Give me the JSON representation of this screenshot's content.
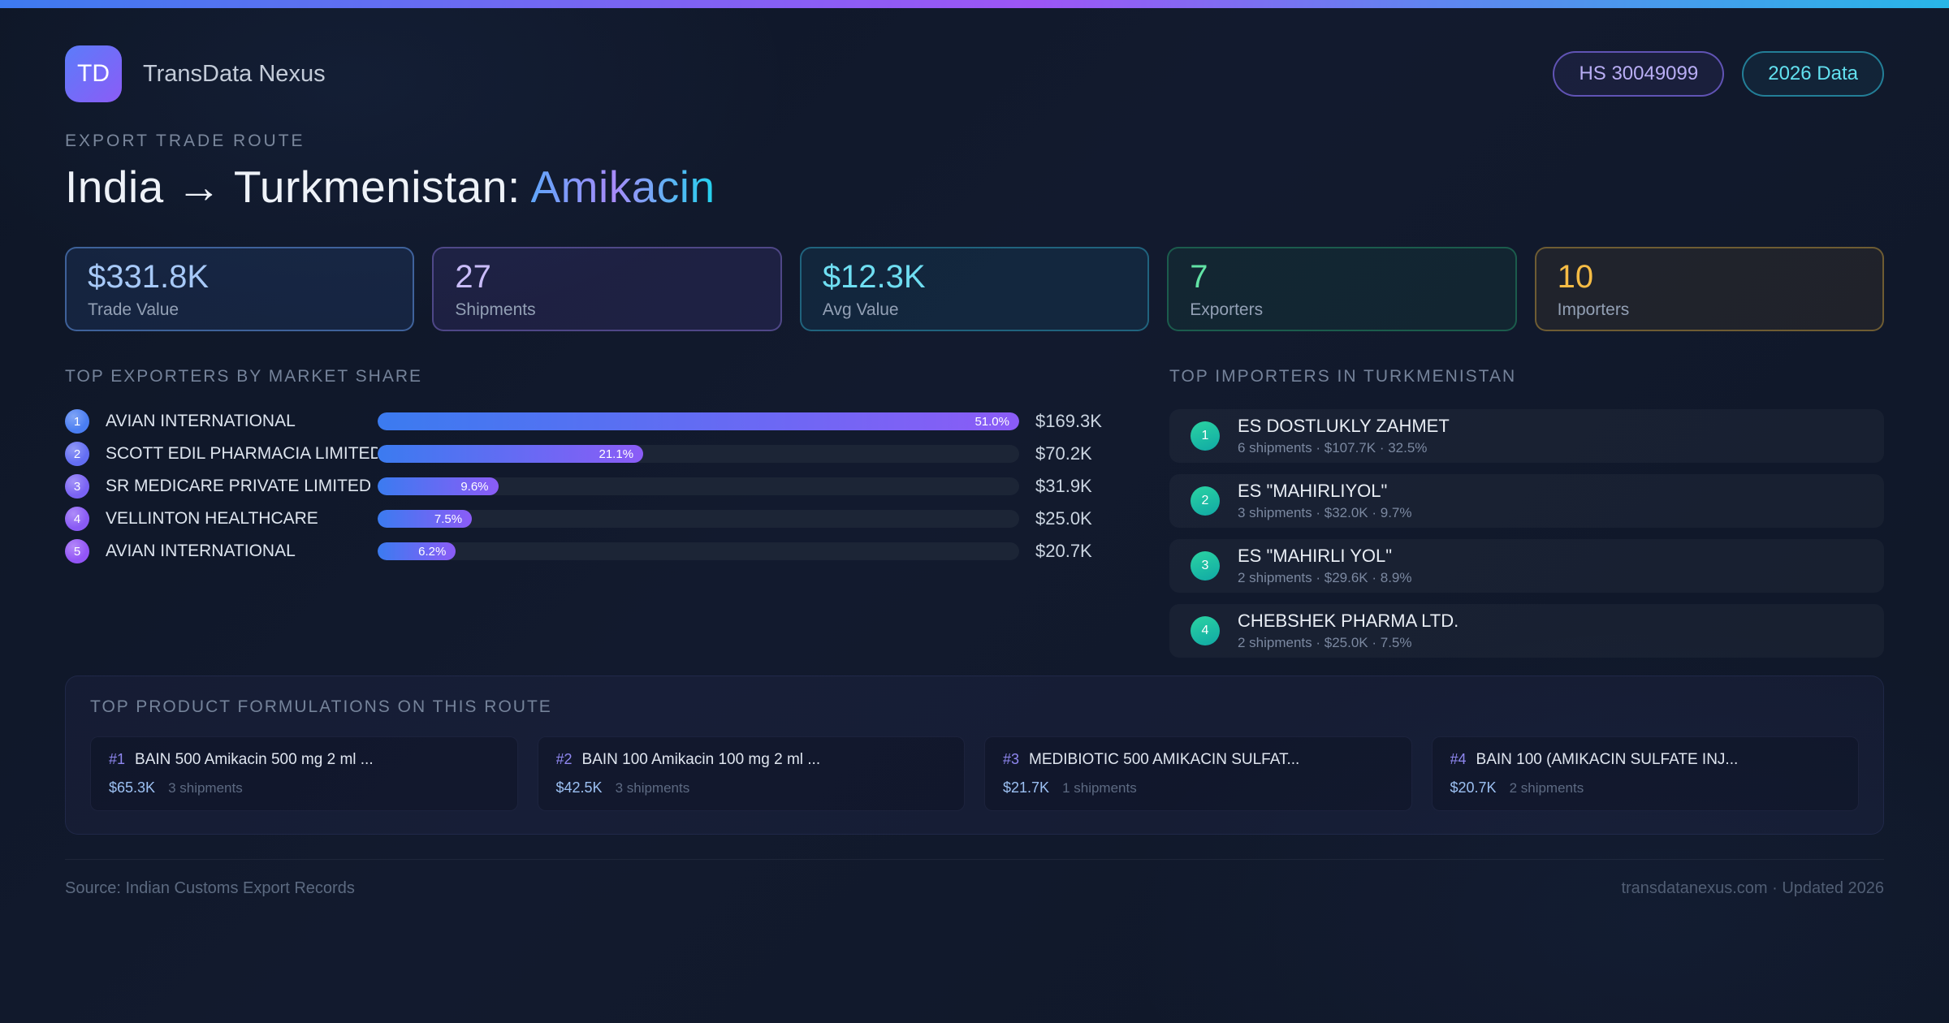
{
  "brand": {
    "logo": "TD",
    "name": "TransData Nexus"
  },
  "chips": {
    "hs_code": "HS 30049099",
    "year": "2026 Data"
  },
  "hero": {
    "eyebrow": "EXPORT TRADE ROUTE",
    "title_route": "India → Turkmenistan: ",
    "title_product": "Amikacin"
  },
  "stats": [
    {
      "value": "$331.8K",
      "label": "Trade Value",
      "color": "#a7c9f8",
      "border": "rgba(96,150,230,0.55)",
      "bg": "rgba(56,103,186,0.16)"
    },
    {
      "value": "27",
      "label": "Shipments",
      "color": "#c9bcf9",
      "border": "rgba(140,120,220,0.45)",
      "bg": "rgba(110,86,214,0.14)"
    },
    {
      "value": "$12.3K",
      "label": "Avg Value",
      "color": "#6fdef2",
      "border": "rgba(45,160,190,0.50)",
      "bg": "rgba(30,140,180,0.12)"
    },
    {
      "value": "7",
      "label": "Exporters",
      "color": "#62e3a5",
      "border": "rgba(40,160,110,0.45)",
      "bg": "rgba(30,150,100,0.10)"
    },
    {
      "value": "10",
      "label": "Importers",
      "color": "#f6bc45",
      "border": "rgba(190,150,60,0.50)",
      "bg": "rgba(170,130,50,0.10)"
    }
  ],
  "exporters": {
    "title": "TOP EXPORTERS BY MARKET SHARE",
    "max_share_pct": 51.0,
    "rows": [
      {
        "rank": "1",
        "name": "AVIAN INTERNATIONAL",
        "share_pct": 51.0,
        "share_label": "51.0%",
        "value": "$169.3K",
        "badge": "#4a7ef2"
      },
      {
        "rank": "2",
        "name": "SCOTT EDIL PHARMACIA LIMITED",
        "share_pct": 21.1,
        "share_label": "21.1%",
        "value": "$70.2K",
        "badge": "#636ef3"
      },
      {
        "rank": "3",
        "name": "SR MEDICARE PRIVATE LIMITED",
        "share_pct": 9.6,
        "share_label": "9.6%",
        "value": "$31.9K",
        "badge": "#7a63f4"
      },
      {
        "rank": "4",
        "name": "VELLINTON HEALTHCARE",
        "share_pct": 7.5,
        "share_label": "7.5%",
        "value": "$25.0K",
        "badge": "#8a5bf5"
      },
      {
        "rank": "5",
        "name": "AVIAN INTERNATIONAL",
        "share_pct": 6.2,
        "share_label": "6.2%",
        "value": "$20.7K",
        "badge": "#9355f6"
      }
    ]
  },
  "importers": {
    "title": "TOP IMPORTERS IN TURKMENISTAN",
    "rows": [
      {
        "rank": "1",
        "name": "ES DOSTLUKLY ZAHMET",
        "meta": "6 shipments · $107.7K · 32.5%"
      },
      {
        "rank": "2",
        "name": "ES \"MAHIRLIYOL\"",
        "meta": "3 shipments · $32.0K · 9.7%"
      },
      {
        "rank": "3",
        "name": "ES \"MAHIRLI YOL\"",
        "meta": "2 shipments · $29.6K · 8.9%"
      },
      {
        "rank": "4",
        "name": "CHEBSHEK PHARMA LTD.",
        "meta": "2 shipments · $25.0K · 7.5%"
      }
    ]
  },
  "products": {
    "title": "TOP PRODUCT FORMULATIONS ON THIS ROUTE",
    "cards": [
      {
        "rank": "#1",
        "name": "BAIN 500 Amikacin 500 mg 2 ml ...",
        "value": "$65.3K",
        "shipments": "3 shipments"
      },
      {
        "rank": "#2",
        "name": "BAIN 100 Amikacin 100 mg 2 ml ...",
        "value": "$42.5K",
        "shipments": "3 shipments"
      },
      {
        "rank": "#3",
        "name": "MEDIBIOTIC 500 AMIKACIN SULFAT...",
        "value": "$21.7K",
        "shipments": "1 shipments"
      },
      {
        "rank": "#4",
        "name": "BAIN 100 (AMIKACIN SULFATE INJ...",
        "value": "$20.7K",
        "shipments": "2 shipments"
      }
    ]
  },
  "footer": {
    "source": "Source: Indian Customs Export Records",
    "site": "transdatanexus.com · Updated 2026"
  }
}
